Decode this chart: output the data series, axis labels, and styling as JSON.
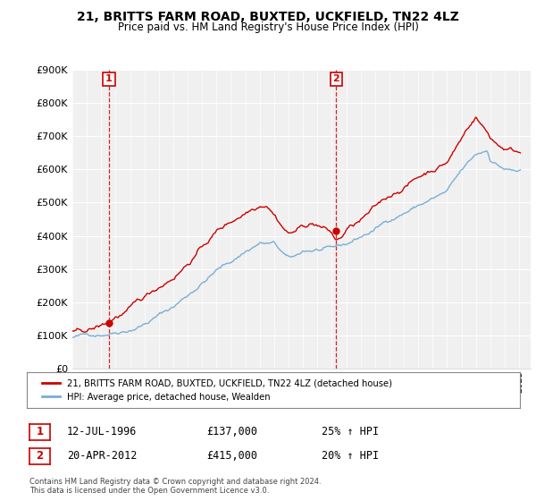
{
  "title": "21, BRITTS FARM ROAD, BUXTED, UCKFIELD, TN22 4LZ",
  "subtitle": "Price paid vs. HM Land Registry's House Price Index (HPI)",
  "sale1_date": "12-JUL-1996",
  "sale1_price": 137000,
  "sale1_label": "25% ↑ HPI",
  "sale2_date": "20-APR-2012",
  "sale2_price": 415000,
  "sale2_label": "20% ↑ HPI",
  "sale1_year": 1996.54,
  "sale2_year": 2012.3,
  "legend_line1": "21, BRITTS FARM ROAD, BUXTED, UCKFIELD, TN22 4LZ (detached house)",
  "legend_line2": "HPI: Average price, detached house, Wealden",
  "footer": "Contains HM Land Registry data © Crown copyright and database right 2024.\nThis data is licensed under the Open Government Licence v3.0.",
  "red_color": "#cc0000",
  "blue_color": "#7aaed6",
  "ylim": [
    0,
    900000
  ],
  "xlim_start": 1994.0,
  "xlim_end": 2025.8,
  "yticks": [
    0,
    100000,
    200000,
    300000,
    400000,
    500000,
    600000,
    700000,
    800000,
    900000
  ],
  "bg_color": "#f0f0f0"
}
